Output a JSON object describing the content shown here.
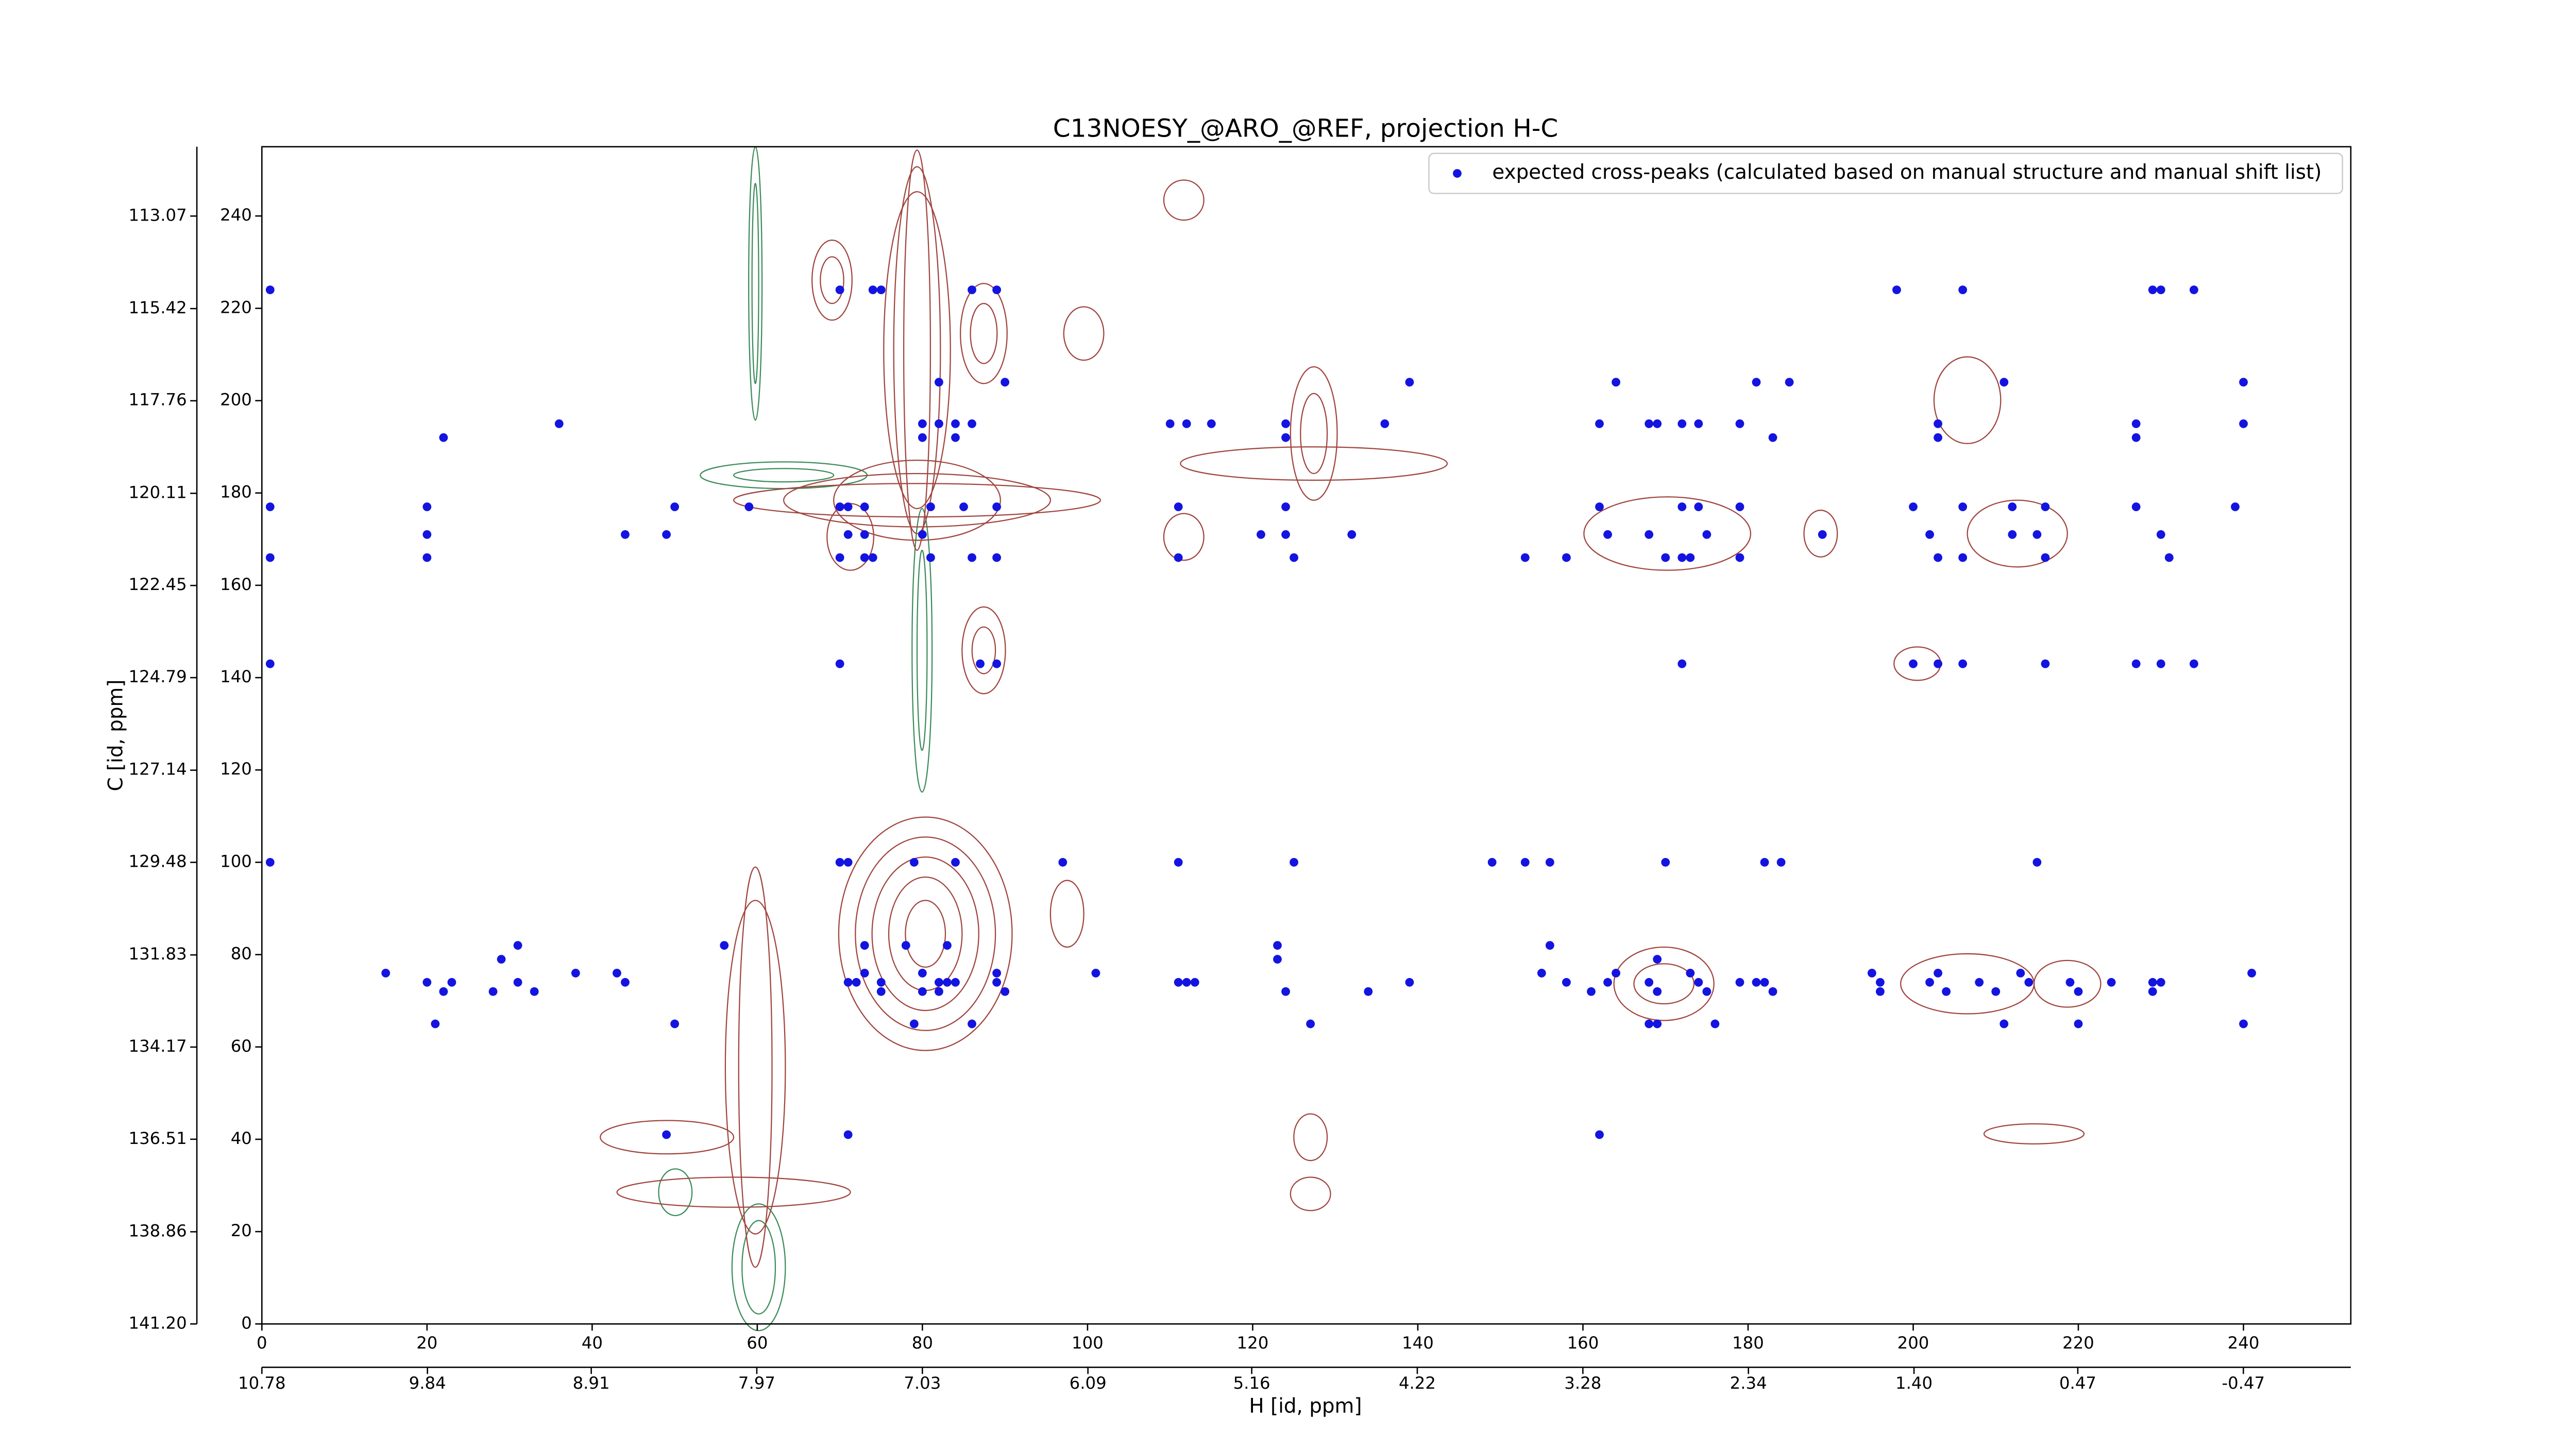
{
  "chart_data": {
    "type": "scatter",
    "title": "C13NOESY_@ARO_@REF, projection H-C",
    "xlabel": "H [id, ppm]",
    "ylabel": "C [id, ppm]",
    "xlim": [
      0,
      253
    ],
    "ylim": [
      0,
      255
    ],
    "xticks": [
      0,
      20,
      40,
      60,
      80,
      100,
      120,
      140,
      160,
      180,
      200,
      220,
      240
    ],
    "yticks": [
      0,
      20,
      40,
      60,
      80,
      100,
      120,
      140,
      160,
      180,
      200,
      220,
      240
    ],
    "x2lim": [
      10.78,
      -1.08
    ],
    "x2ticks": [
      10.78,
      9.84,
      8.91,
      7.97,
      7.03,
      6.09,
      5.16,
      4.22,
      3.28,
      2.34,
      {
        "value": 1.4,
        "label": "1.40"
      },
      0.47,
      -0.47
    ],
    "y2lim": [
      141.2,
      111.31
    ],
    "y2ticks": [
      {
        "value": 141.2,
        "label": "141.20"
      },
      138.86,
      136.51,
      134.17,
      131.83,
      129.48,
      127.14,
      124.79,
      122.45,
      120.11,
      117.76,
      115.42,
      113.07
    ],
    "legend": "upper right",
    "series": [
      {
        "name": "expected cross-peaks (calculated based on manual structure and manual shift list)",
        "color": "#1414e0",
        "x": [
          1,
          70,
          74,
          75,
          86,
          89,
          198,
          206,
          229,
          230,
          234,
          82,
          90,
          139,
          164,
          181,
          185,
          211,
          240,
          36,
          80,
          82,
          84,
          86,
          110,
          112,
          115,
          124,
          136,
          162,
          168,
          169,
          172,
          174,
          179,
          203,
          227,
          240,
          22,
          80,
          84,
          124,
          183,
          203,
          227,
          1,
          20,
          50,
          59,
          70,
          71,
          73,
          81,
          85,
          89,
          111,
          124,
          162,
          172,
          174,
          179,
          200,
          206,
          212,
          216,
          227,
          239,
          20,
          44,
          49,
          71,
          73,
          80,
          121,
          124,
          132,
          163,
          168,
          175,
          189,
          202,
          212,
          215,
          230,
          1,
          20,
          70,
          73,
          74,
          81,
          86,
          89,
          111,
          125,
          153,
          158,
          170,
          172,
          173,
          179,
          203,
          206,
          216,
          231,
          1,
          70,
          87,
          89,
          172,
          200,
          203,
          206,
          216,
          227,
          230,
          234,
          1,
          70,
          71,
          79,
          84,
          97,
          111,
          125,
          149,
          153,
          156,
          170,
          182,
          184,
          215,
          31,
          56,
          73,
          78,
          83,
          123,
          156,
          29,
          123,
          169,
          15,
          38,
          43,
          73,
          80,
          89,
          101,
          155,
          164,
          173,
          195,
          203,
          213,
          241,
          20,
          23,
          31,
          44,
          71,
          72,
          75,
          82,
          83,
          84,
          89,
          111,
          112,
          113,
          139,
          158,
          163,
          168,
          174,
          179,
          181,
          182,
          196,
          202,
          208,
          214,
          219,
          224,
          229,
          230,
          22,
          28,
          33,
          75,
          80,
          82,
          90,
          124,
          134,
          161,
          169,
          175,
          183,
          196,
          204,
          210,
          220,
          229,
          21,
          50,
          79,
          86,
          127,
          168,
          169,
          176,
          211,
          220,
          240,
          49,
          71,
          162
        ],
        "values": [
          224,
          224,
          224,
          224,
          224,
          224,
          224,
          224,
          224,
          224,
          224,
          204,
          204,
          204,
          204,
          204,
          204,
          204,
          204,
          195,
          195,
          195,
          195,
          195,
          195,
          195,
          195,
          195,
          195,
          195,
          195,
          195,
          195,
          195,
          195,
          195,
          195,
          195,
          192,
          192,
          192,
          192,
          192,
          192,
          192,
          177,
          177,
          177,
          177,
          177,
          177,
          177,
          177,
          177,
          177,
          177,
          177,
          177,
          177,
          177,
          177,
          177,
          177,
          177,
          177,
          177,
          177,
          171,
          171,
          171,
          171,
          171,
          171,
          171,
          171,
          171,
          171,
          171,
          171,
          171,
          171,
          171,
          171,
          171,
          166,
          166,
          166,
          166,
          166,
          166,
          166,
          166,
          166,
          166,
          166,
          166,
          166,
          166,
          166,
          166,
          166,
          166,
          166,
          166,
          143,
          143,
          143,
          143,
          143,
          143,
          143,
          143,
          143,
          143,
          143,
          143,
          100,
          100,
          100,
          100,
          100,
          100,
          100,
          100,
          100,
          100,
          100,
          100,
          100,
          100,
          100,
          82,
          82,
          82,
          82,
          82,
          82,
          82,
          79,
          79,
          79,
          76,
          76,
          76,
          76,
          76,
          76,
          76,
          76,
          76,
          76,
          76,
          76,
          76,
          76,
          74,
          74,
          74,
          74,
          74,
          74,
          74,
          74,
          74,
          74,
          74,
          74,
          74,
          74,
          74,
          74,
          74,
          74,
          74,
          74,
          74,
          74,
          74,
          74,
          74,
          74,
          74,
          74,
          74,
          74,
          72,
          72,
          72,
          72,
          72,
          72,
          72,
          72,
          72,
          72,
          72,
          72,
          72,
          72,
          72,
          72,
          72,
          72,
          65,
          65,
          65,
          65,
          65,
          65,
          65,
          65,
          65,
          65,
          65,
          41,
          41,
          41
        ]
      }
    ]
  }
}
